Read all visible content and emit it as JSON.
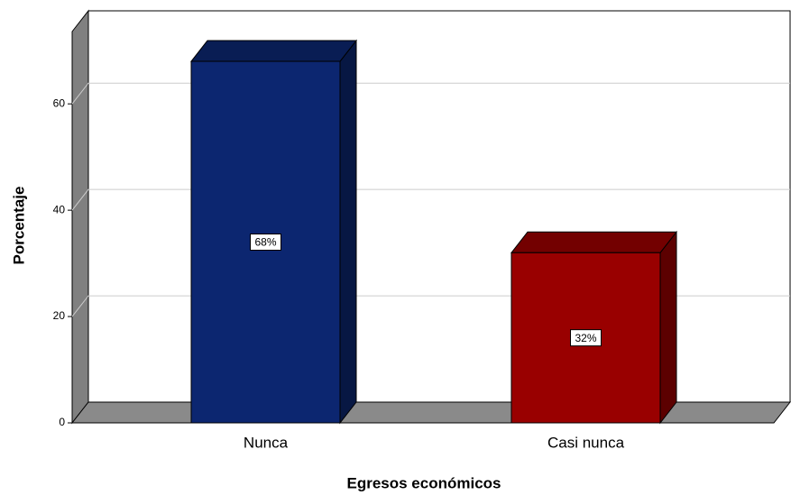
{
  "chart_data": {
    "type": "bar3d",
    "x_label": "Egresos económicos",
    "y_label": "Porcentaje",
    "categories": [
      "Nunca",
      "Casi nunca"
    ],
    "values": [
      68,
      32
    ],
    "value_labels": [
      "68%",
      "32%"
    ],
    "colors": [
      "#0c2670",
      "#990000"
    ],
    "ylim": [
      0,
      73.6
    ],
    "yticks": [
      0,
      20,
      40,
      60
    ],
    "grid": true
  }
}
